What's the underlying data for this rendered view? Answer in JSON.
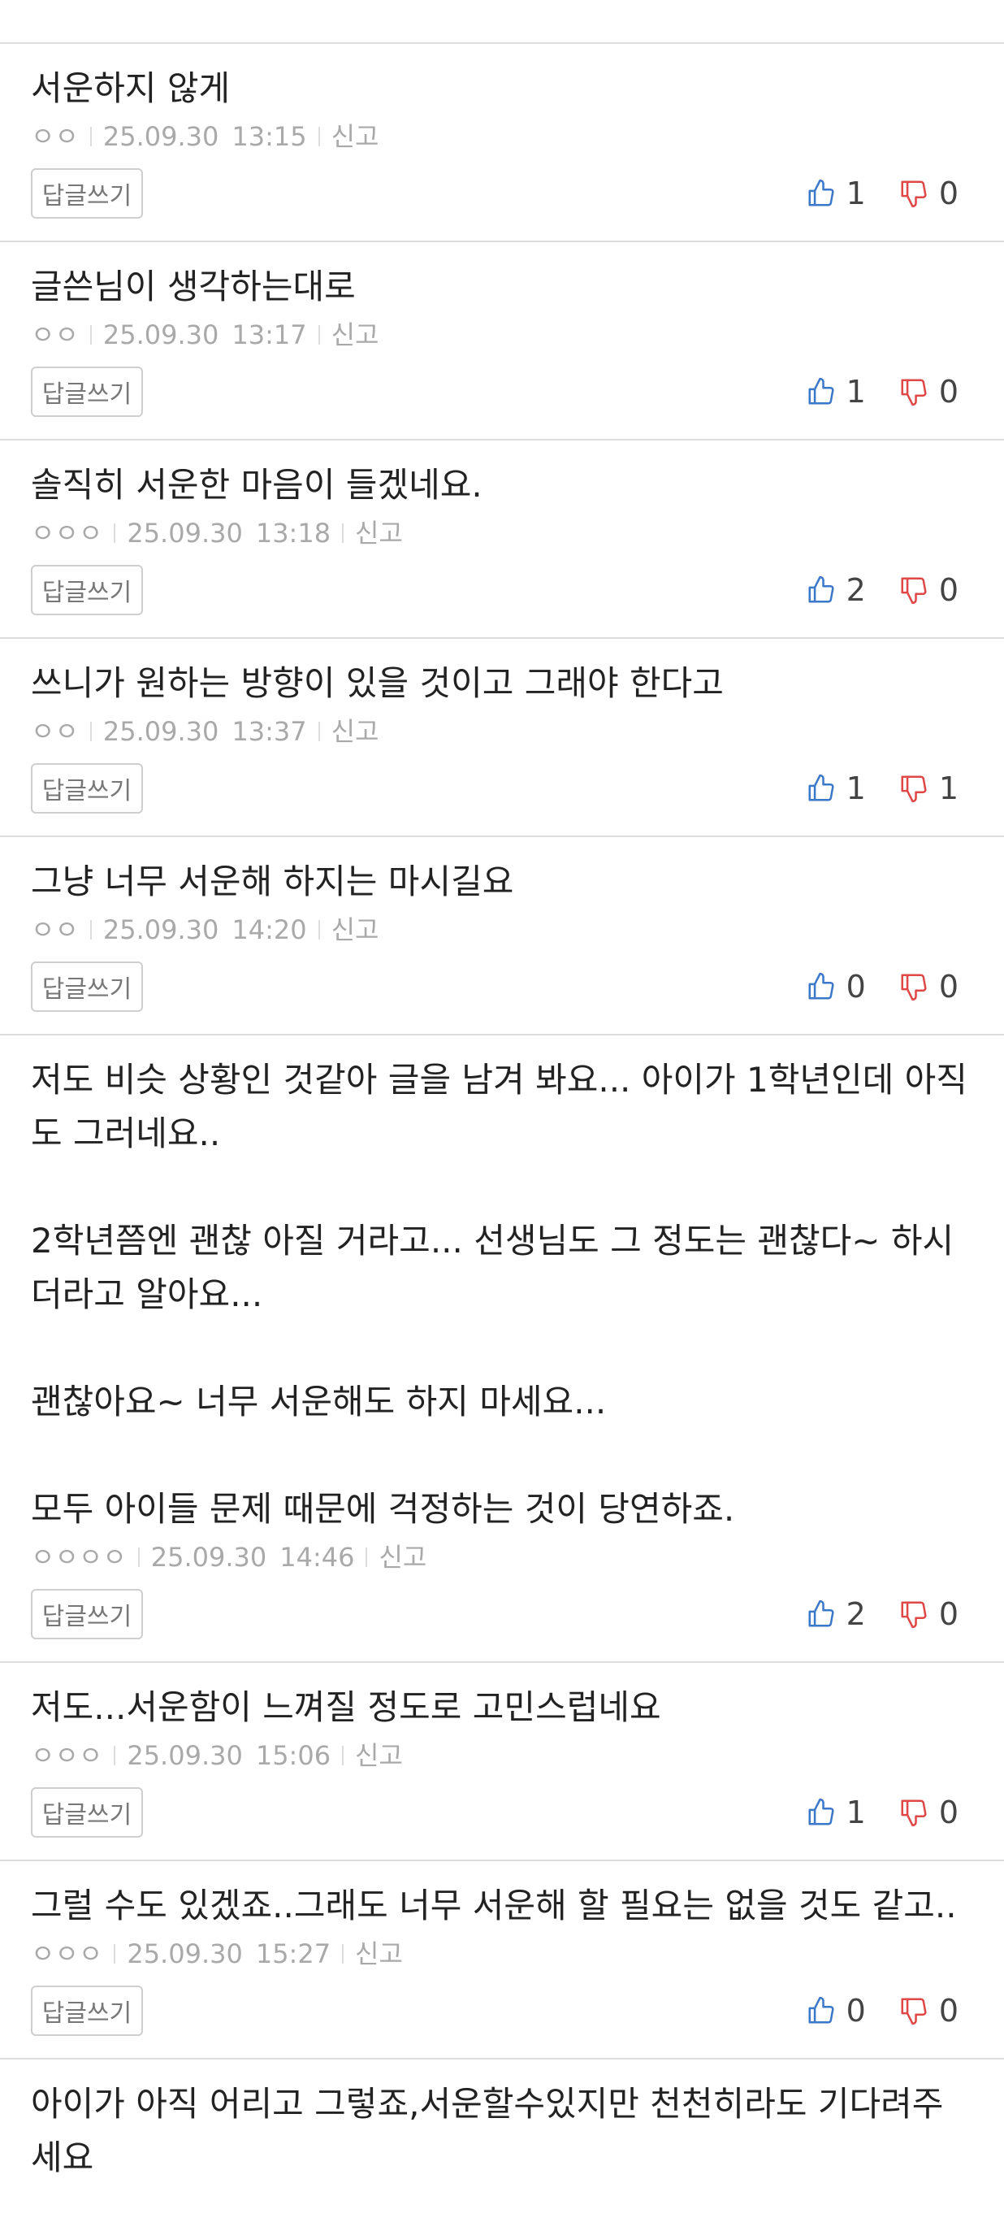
{
  "reply_label": "답글쓰기",
  "comments": [
    {
      "text": [
        "서운하지 않게"
      ],
      "author": "ㅇㅇ",
      "date": "25.09.30",
      "time": "13:15",
      "report": "신고",
      "likes": "1",
      "dislikes": "0"
    },
    {
      "text": [
        "글쓴님이 생각하는대로"
      ],
      "author": "ㅇㅇ",
      "date": "25.09.30",
      "time": "13:17",
      "report": "신고",
      "likes": "1",
      "dislikes": "0"
    },
    {
      "text": [
        "솔직히 서운한 마음이 들겠네요."
      ],
      "author": "ㅇㅇㅇ",
      "date": "25.09.30",
      "time": "13:18",
      "report": "신고",
      "likes": "2",
      "dislikes": "0"
    },
    {
      "text": [
        "쓰니가 원하는 방향이 있을 것이고 그래야 한다고"
      ],
      "author": "ㅇㅇ",
      "date": "25.09.30",
      "time": "13:37",
      "report": "신고",
      "likes": "1",
      "dislikes": "1"
    },
    {
      "text": [
        "그냥 너무 서운해 하지는 마시길요"
      ],
      "author": "ㅇㅇ",
      "date": "25.09.30",
      "time": "14:20",
      "report": "신고",
      "likes": "0",
      "dislikes": "0"
    },
    {
      "text": [
        "저도 비슷 상황인 것같아 글을 남겨 봐요... 아이가 1학년인데 아직도 그러네요..",
        "2학년쯤엔 괜찮 아질 거라고... 선생님도 그 정도는 괜찮다~ 하시더라고 알아요...",
        "괜찮아요~ 너무 서운해도 하지 마세요...",
        "모두 아이들 문제 때문에 걱정하는 것이 당연하죠."
      ],
      "author": "ㅇㅇㅇㅇ",
      "date": "25.09.30",
      "time": "14:46",
      "report": "신고",
      "likes": "2",
      "dislikes": "0"
    },
    {
      "text": [
        "저도...서운함이 느껴질 정도로 고민스럽네요"
      ],
      "author": "ㅇㅇㅇ",
      "date": "25.09.30",
      "time": "15:06",
      "report": "신고",
      "likes": "1",
      "dislikes": "0"
    },
    {
      "text": [
        "그럴 수도 있겠죠..그래도 너무 서운해 할 필요는 없을 것도 같고.."
      ],
      "author": "ㅇㅇㅇ",
      "date": "25.09.30",
      "time": "15:27",
      "report": "신고",
      "likes": "0",
      "dislikes": "0"
    },
    {
      "text": [
        "아이가 아직 어리고 그렇죠,서운할수있지만 천천히라도 기다려주세요"
      ]
    }
  ]
}
